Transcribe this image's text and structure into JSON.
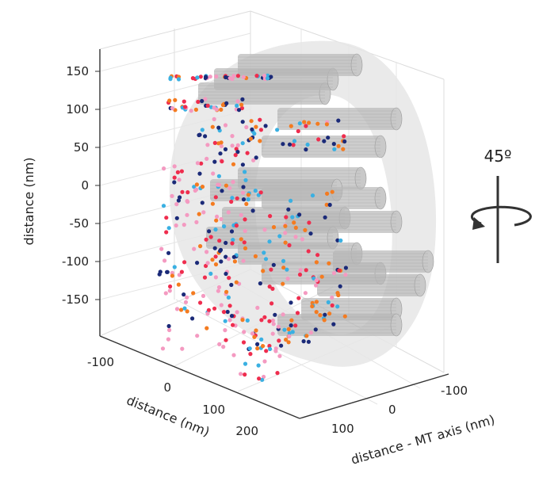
{
  "chart_data": {
    "type": "scatter",
    "projection": "3d",
    "title": "",
    "ylabel": "distance (nm)",
    "xlabel": "distance (nm)",
    "zlabel": "distance - MT axis (nm)",
    "vertical_ticks": [
      "150",
      "100",
      "50",
      "0",
      "-50",
      "-100",
      "-150"
    ],
    "vertical_tick_values": [
      150,
      100,
      50,
      0,
      -50,
      -100,
      -150
    ],
    "depth_ticks": [
      "-100",
      "0",
      "100",
      "200"
    ],
    "depth_tick_values": [
      -100,
      0,
      100,
      200
    ],
    "mt_ticks": [
      "-100",
      "0",
      "100"
    ],
    "mt_tick_values": [
      -100,
      0,
      100
    ],
    "vertical_range": [
      -190,
      175
    ],
    "grid": true,
    "series_colors": [
      "#f47b20",
      "#3ab0e2",
      "#ef2d4e",
      "#1b2a78",
      "#f49ac1"
    ],
    "cylinder_color": "#b8b8b8",
    "ring_color": "#e6e6e6",
    "annotation": {
      "rotation_label": "45º"
    }
  }
}
